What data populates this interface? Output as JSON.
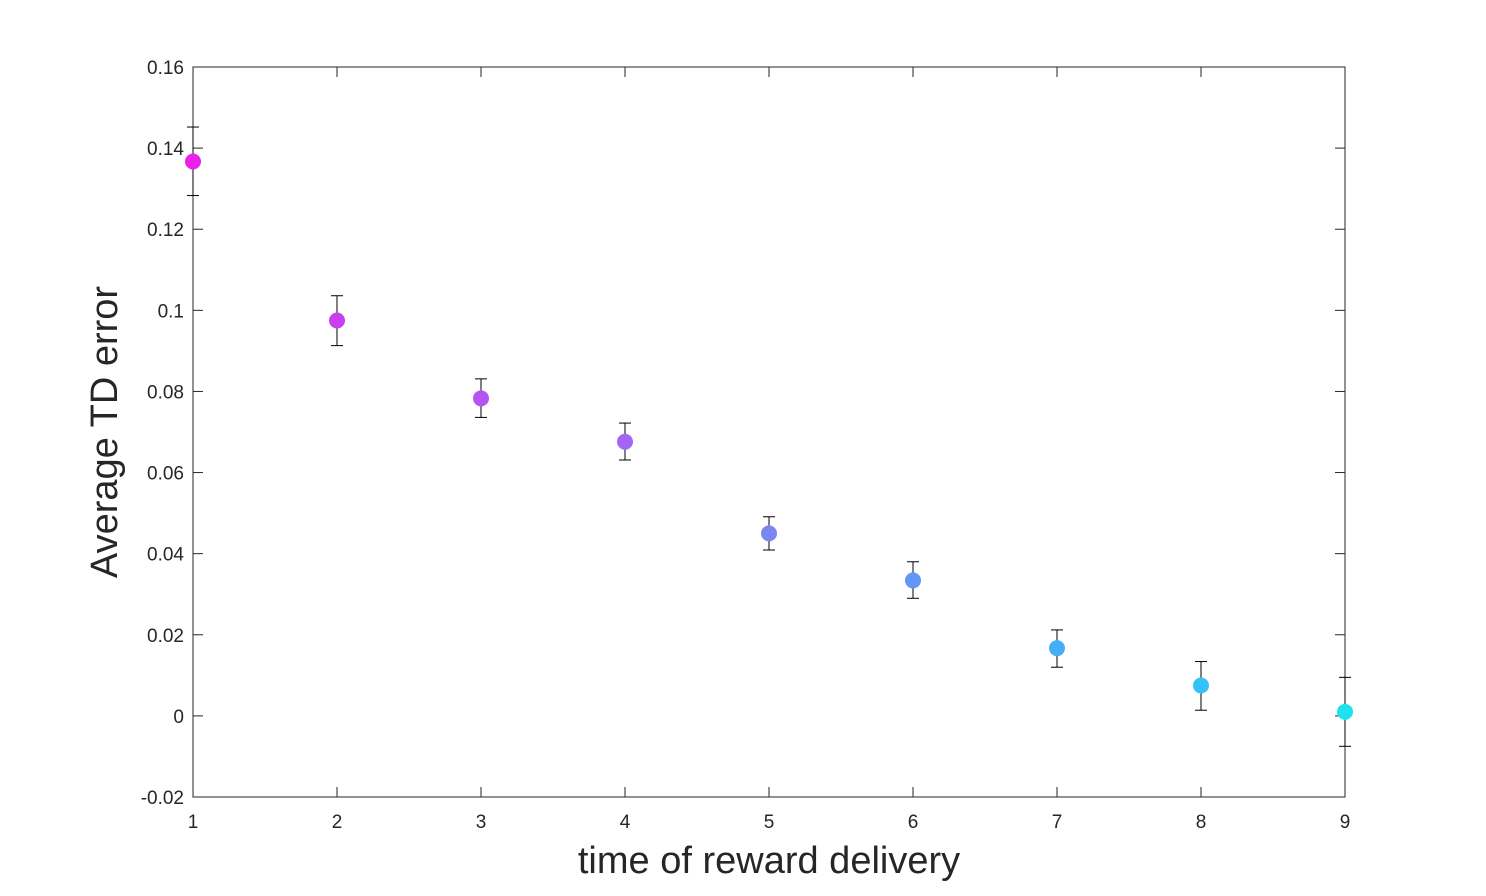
{
  "chart_data": {
    "type": "scatter",
    "title": "",
    "xlabel": "time of reward delivery",
    "ylabel": "Average TD error",
    "xlim": [
      1,
      9
    ],
    "ylim": [
      -0.02,
      0.16
    ],
    "x_ticks": [
      1,
      2,
      3,
      4,
      5,
      6,
      7,
      8,
      9
    ],
    "x_tick_labels": [
      "1",
      "2",
      "3",
      "4",
      "5",
      "6",
      "7",
      "8",
      "9"
    ],
    "y_ticks": [
      -0.02,
      0,
      0.02,
      0.04,
      0.06,
      0.08,
      0.1,
      0.12,
      0.14,
      0.16
    ],
    "y_tick_labels": [
      "-0.02",
      "0",
      "0.02",
      "0.04",
      "0.06",
      "0.08",
      "0.1",
      "0.12",
      "0.14",
      "0.16"
    ],
    "grid": false,
    "box": true,
    "legend": "none",
    "error_bars": true,
    "points": [
      {
        "x": 1,
        "y": 0.1367,
        "err_low": 0.1283,
        "err_high": 0.1452,
        "color": "#ea21ea"
      },
      {
        "x": 2,
        "y": 0.0975,
        "err_low": 0.0913,
        "err_high": 0.1036,
        "color": "#c93ff0"
      },
      {
        "x": 3,
        "y": 0.0783,
        "err_low": 0.0736,
        "err_high": 0.0831,
        "color": "#b654f2"
      },
      {
        "x": 4,
        "y": 0.0676,
        "err_low": 0.0631,
        "err_high": 0.0722,
        "color": "#a465f5"
      },
      {
        "x": 5,
        "y": 0.045,
        "err_low": 0.0409,
        "err_high": 0.0491,
        "color": "#7c86f3"
      },
      {
        "x": 6,
        "y": 0.0334,
        "err_low": 0.029,
        "err_high": 0.038,
        "color": "#6397f6"
      },
      {
        "x": 7,
        "y": 0.0167,
        "err_low": 0.012,
        "err_high": 0.0212,
        "color": "#44aef9"
      },
      {
        "x": 8,
        "y": 0.0075,
        "err_low": 0.0014,
        "err_high": 0.0134,
        "color": "#35c2f9"
      },
      {
        "x": 9,
        "y": 0.001,
        "err_low": -0.0075,
        "err_high": 0.0095,
        "color": "#1fe2f1"
      }
    ]
  }
}
